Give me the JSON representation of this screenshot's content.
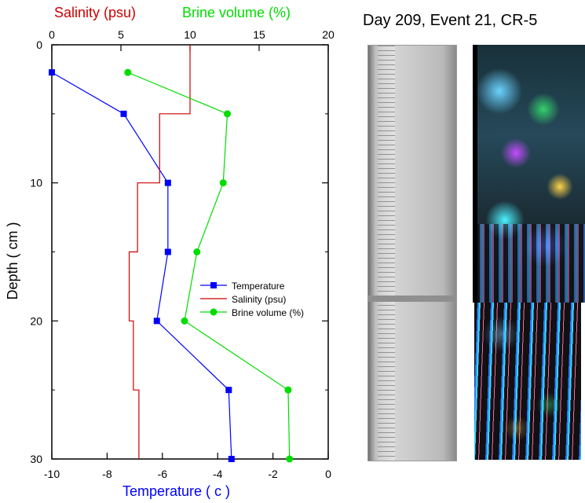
{
  "photo_title": "Day 209, Event 21, CR-5",
  "colors": {
    "temperature": "#0000ff",
    "salinity": "#cc0000",
    "brine": "#00dd00",
    "axis": "#000000"
  },
  "chart_data": {
    "type": "line",
    "title": "",
    "y_axis": {
      "label": "Depth ( cm )",
      "range": [
        0,
        30
      ],
      "ticks": [
        0,
        10,
        20,
        30
      ],
      "tick_labels": [
        "0",
        "10",
        "20",
        "30"
      ],
      "inverted": true
    },
    "bottom_axis": {
      "label": "Temperature ( c )",
      "range": [
        -10,
        0
      ],
      "ticks": [
        -10,
        -8,
        -6,
        -4,
        -2,
        0
      ],
      "tick_labels": [
        "-10",
        "-8",
        "-6",
        "-4",
        "-2",
        "0"
      ]
    },
    "top_axis": {
      "label_salinity": "Salinity (psu)",
      "label_brine": "Brine volume (%)",
      "range": [
        0,
        20
      ],
      "ticks": [
        0,
        5,
        10,
        15,
        20
      ],
      "tick_labels": [
        "0",
        "5",
        "10",
        "15",
        "20"
      ]
    },
    "series": [
      {
        "name": "Temperature",
        "axis": "bottom",
        "color": "#0000ff",
        "marker": "square",
        "points": [
          {
            "x": -10,
            "depth": 2
          },
          {
            "x": -7.4,
            "depth": 5
          },
          {
            "x": -5.8,
            "depth": 10
          },
          {
            "x": -5.8,
            "depth": 15
          },
          {
            "x": -6.2,
            "depth": 20
          },
          {
            "x": -3.6,
            "depth": 25
          },
          {
            "x": -3.5,
            "depth": 30
          }
        ]
      },
      {
        "name": "Salinity (psu)",
        "axis": "top",
        "color": "#cc0000",
        "marker": "none",
        "steps": [
          {
            "value": 10,
            "from": 0,
            "to": 5
          },
          {
            "value": 7.8,
            "from": 5,
            "to": 10
          },
          {
            "value": 6.2,
            "from": 10,
            "to": 15
          },
          {
            "value": 5.6,
            "from": 15,
            "to": 20
          },
          {
            "value": 5.9,
            "from": 20,
            "to": 25
          },
          {
            "value": 6.3,
            "from": 25,
            "to": 30
          }
        ]
      },
      {
        "name": "Brine volume (%)",
        "axis": "top",
        "color": "#00dd00",
        "marker": "circle",
        "points": [
          {
            "x": 5.5,
            "depth": 2
          },
          {
            "x": 12.7,
            "depth": 5
          },
          {
            "x": 12.4,
            "depth": 10
          },
          {
            "x": 10.5,
            "depth": 15
          },
          {
            "x": 9.6,
            "depth": 20
          },
          {
            "x": 17.1,
            "depth": 25
          },
          {
            "x": 17.2,
            "depth": 30
          }
        ]
      }
    ],
    "legend": {
      "placement": "middle-right",
      "items": [
        "Temperature",
        "Salinity (psu)",
        "Brine volume (%)"
      ]
    }
  }
}
